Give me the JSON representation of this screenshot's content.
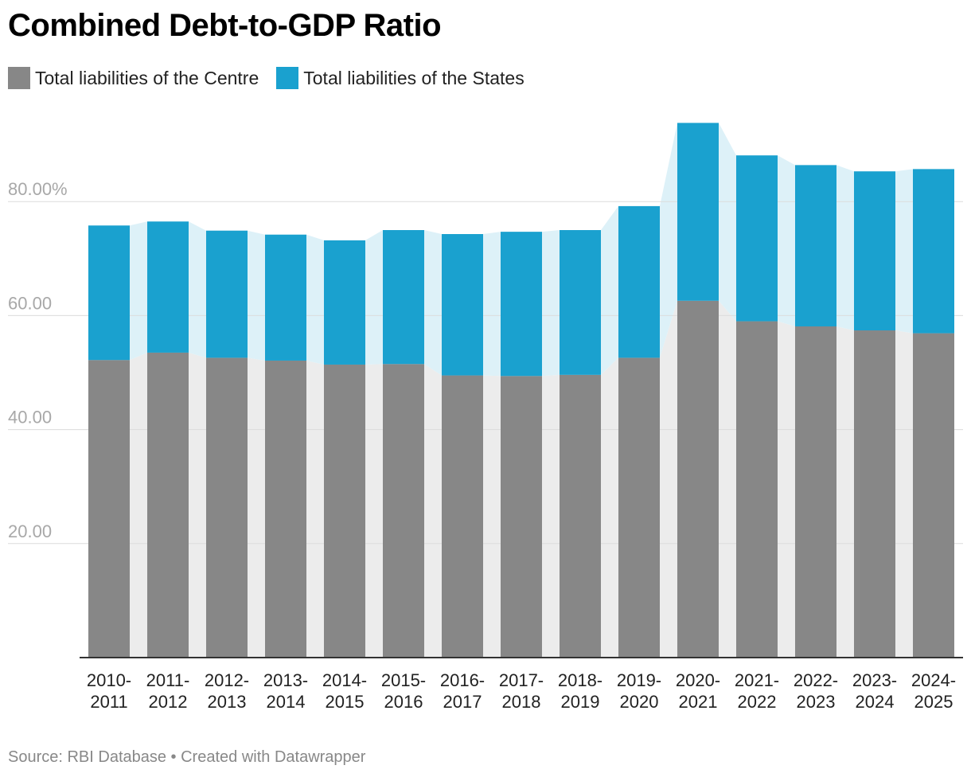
{
  "header": {
    "title": "Combined Debt-to-GDP Ratio"
  },
  "legend": {
    "items": [
      {
        "label": "Total liabilities of the Centre",
        "color": "#878787"
      },
      {
        "label": "Total liabilities of the States",
        "color": "#1aa1cf"
      }
    ]
  },
  "footer": {
    "source": "Source: RBI Database • Created with Datawrapper"
  },
  "chart_data": {
    "type": "bar",
    "stacked": true,
    "title": "Combined Debt-to-GDP Ratio",
    "xlabel": "",
    "ylabel": "",
    "ylim": [
      0,
      100
    ],
    "yticks": [
      20,
      40,
      60,
      80
    ],
    "ytick_labels": [
      "20.00",
      "40.00",
      "60.00",
      "80.00%"
    ],
    "grid": true,
    "legend_position": "top-left",
    "categories": [
      [
        "2010-",
        "2011"
      ],
      [
        "2011-",
        "2012"
      ],
      [
        "2012-",
        "2013"
      ],
      [
        "2013-",
        "2014"
      ],
      [
        "2014-",
        "2015"
      ],
      [
        "2015-",
        "2016"
      ],
      [
        "2016-",
        "2017"
      ],
      [
        "2017-",
        "2018"
      ],
      [
        "2018-",
        "2019"
      ],
      [
        "2019-",
        "2020"
      ],
      [
        "2020-",
        "2021"
      ],
      [
        "2021-",
        "2022"
      ],
      [
        "2022-",
        "2023"
      ],
      [
        "2023-",
        "2024"
      ],
      [
        "2024-",
        "2025"
      ]
    ],
    "series": [
      {
        "name": "Total liabilities of the Centre",
        "color": "#878787",
        "values": [
          52.2,
          53.5,
          52.6,
          52.1,
          51.4,
          51.5,
          49.5,
          49.4,
          49.6,
          52.6,
          62.6,
          59.0,
          58.1,
          57.4,
          56.9
        ]
      },
      {
        "name": "Total liabilities of the States",
        "color": "#1aa1cf",
        "values": [
          23.6,
          23.0,
          22.3,
          22.1,
          21.8,
          23.5,
          24.8,
          25.3,
          25.4,
          26.6,
          31.2,
          29.1,
          28.3,
          27.9,
          28.8
        ]
      }
    ],
    "area_fill_colors": [
      "#ececec",
      "#ddf1f8"
    ]
  }
}
